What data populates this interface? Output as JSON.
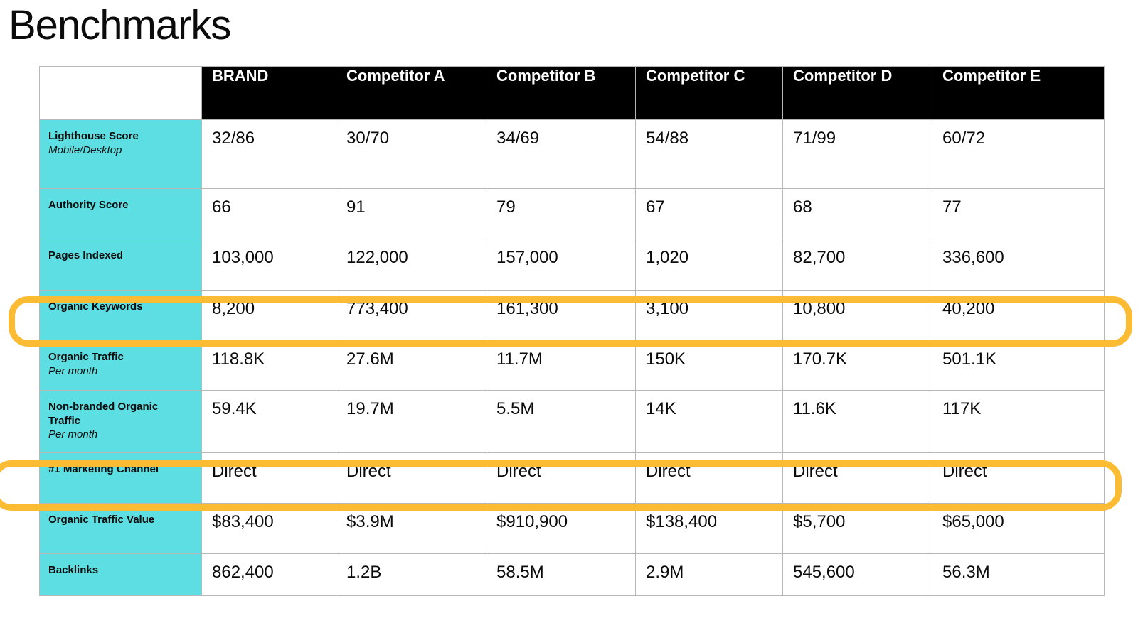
{
  "title": "Benchmarks",
  "colors": {
    "header_bg": "#000000",
    "header_text": "#ffffff",
    "label_bg": "#5CDEE2",
    "highlight": "#FBBB33",
    "border": "#b7b7b7"
  },
  "table": {
    "columns": [
      "BRAND",
      "Competitor A",
      "Competitor B",
      "Competitor C",
      "Competitor D",
      "Competitor E"
    ],
    "rows": [
      {
        "label": "Lighthouse Score",
        "sublabel": "Mobile/Desktop",
        "values": [
          "32/86",
          "30/70",
          "34/69",
          "54/88",
          "71/99",
          "60/72"
        ]
      },
      {
        "label": "Authority Score",
        "sublabel": "",
        "values": [
          "66",
          "91",
          "79",
          "67",
          "68",
          "77"
        ]
      },
      {
        "label": "Pages Indexed",
        "sublabel": "",
        "values": [
          "103,000",
          "122,000",
          "157,000",
          "1,020",
          "82,700",
          "336,600"
        ]
      },
      {
        "label": "Organic Keywords",
        "sublabel": "",
        "values": [
          "8,200",
          "773,400",
          "161,300",
          "3,100",
          "10,800",
          "40,200"
        ]
      },
      {
        "label": "Organic Traffic",
        "sublabel": "Per month",
        "values": [
          "118.8K",
          "27.6M",
          "11.7M",
          "150K",
          "170.7K",
          "501.1K"
        ]
      },
      {
        "label": "Non-branded Organic Traffic",
        "sublabel": "Per month",
        "values": [
          "59.4K",
          "19.7M",
          "5.5M",
          "14K",
          "11.6K",
          "117K"
        ]
      },
      {
        "label": "#1 Marketing Channel",
        "sublabel": "",
        "values": [
          "Direct",
          "Direct",
          "Direct",
          "Direct",
          "Direct",
          "Direct"
        ]
      },
      {
        "label": "Organic Traffic Value",
        "sublabel": "",
        "values": [
          "$83,400",
          "$3.9M",
          "$910,900",
          "$138,400",
          "$5,700",
          "$65,000"
        ]
      },
      {
        "label": "Backlinks",
        "sublabel": "",
        "values": [
          "862,400",
          "1.2B",
          "58.5M",
          "2.9M",
          "545,600",
          "56.3M"
        ]
      }
    ]
  },
  "highlights": [
    {
      "name": "organic-keywords-highlight"
    },
    {
      "name": "marketing-channel-highlight"
    }
  ]
}
